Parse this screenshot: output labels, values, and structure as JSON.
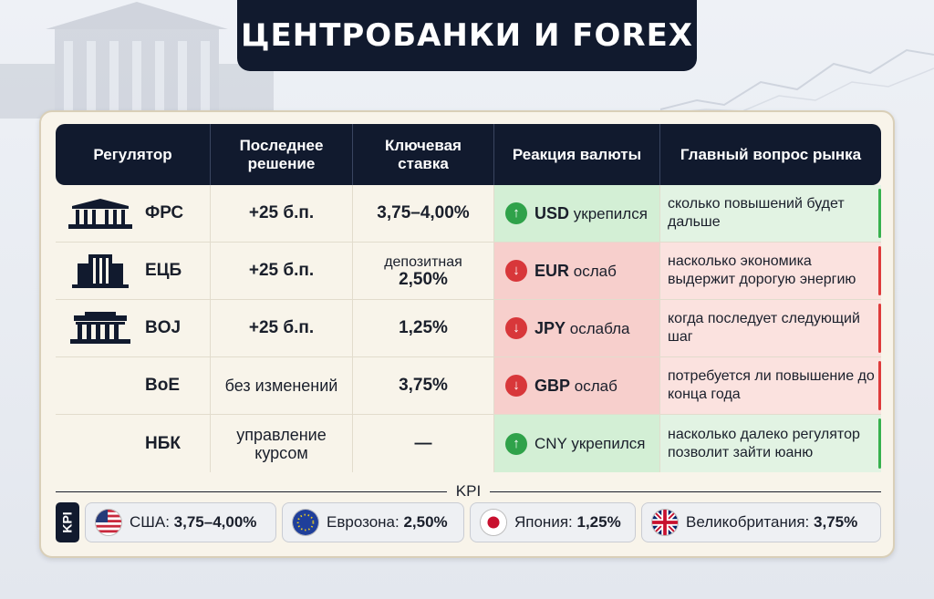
{
  "title": "ЦЕНТРОБАНКИ И FOREX",
  "headers": [
    "Регулятор",
    "Последнее решение",
    "Ключевая ставка",
    "Реакция валюты",
    "Главный вопрос рынка"
  ],
  "rows": [
    {
      "regulator": "ФРС",
      "icon": "government-building-icon",
      "decision": "+25 б.п.",
      "rate": "3,75–4,00%",
      "rate_prefix": "",
      "reaction_currency": "USD",
      "reaction_text": "укрепился",
      "reaction_dir": "up",
      "question": "сколько повышений будет дальше"
    },
    {
      "regulator": "ЕЦБ",
      "icon": "office-tower-icon",
      "decision": "+25 б.п.",
      "rate": "2,50%",
      "rate_prefix": "депозитная",
      "reaction_currency": "EUR",
      "reaction_text": "ослаб",
      "reaction_dir": "down",
      "question": "насколько экономика выдержит дорогую энергию"
    },
    {
      "regulator": "BOJ",
      "icon": "columned-building-icon",
      "decision": "+25 б.п.",
      "rate": "1,25%",
      "rate_prefix": "",
      "reaction_currency": "JPY",
      "reaction_text": "ослабла",
      "reaction_dir": "down",
      "question": "когда последует следующий шаг"
    },
    {
      "regulator": "BoE",
      "icon": "",
      "decision": "без изменений",
      "rate": "3,75%",
      "rate_prefix": "",
      "reaction_currency": "GBP",
      "reaction_text": "ослаб",
      "reaction_dir": "down",
      "question": "потребуется ли повышение до конца года"
    },
    {
      "regulator": "НБК",
      "icon": "",
      "decision": "управление курсом",
      "rate": "—",
      "rate_prefix": "",
      "reaction_currency": "CNY",
      "reaction_text": "укрепился",
      "reaction_dir": "up",
      "question": "насколько далеко регулятор позволит зайти юаню"
    }
  ],
  "kpi": {
    "label": "KPI",
    "tag": "KPI",
    "items": [
      {
        "label": "США:",
        "value": "3,75–4,00%",
        "flag": "us-flag-icon"
      },
      {
        "label": "Еврозона:",
        "value": "2,50%",
        "flag": "eu-flag-icon"
      },
      {
        "label": "Япония:",
        "value": "1,25%",
        "flag": "japan-flag-icon"
      },
      {
        "label": "Великобритания:",
        "value": "3,75%",
        "flag": "uk-flag-icon"
      }
    ]
  },
  "colors": {
    "navy": "#111a2e",
    "up_bg": "#d3efd5",
    "down_bg": "#f7cfcc",
    "up": "#2fa24a",
    "down": "#d8373a"
  }
}
